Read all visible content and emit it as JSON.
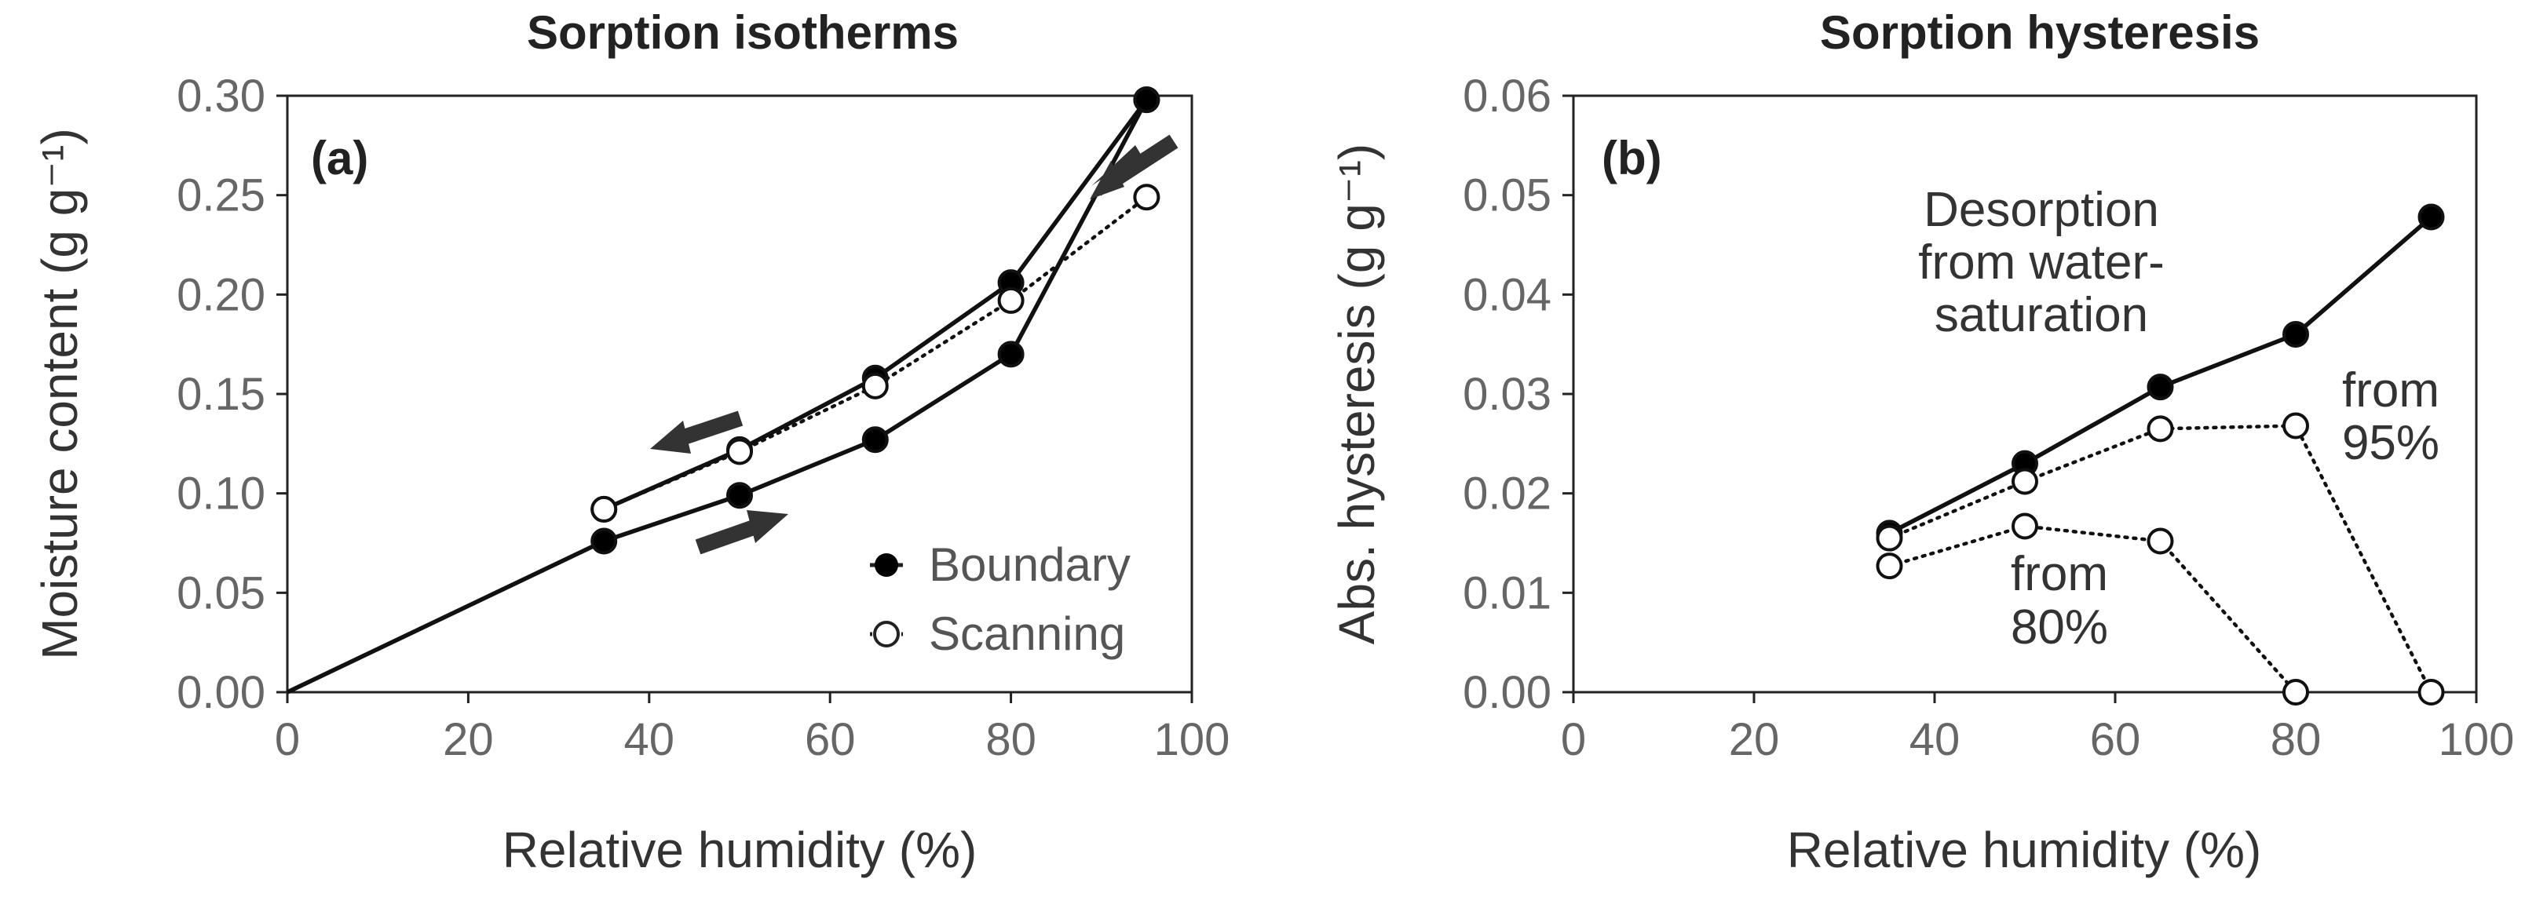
{
  "chart_data": [
    {
      "type": "line",
      "panel_label": "(a)",
      "title": "Sorption isotherms",
      "xlabel": "Relative humidity (%)",
      "ylabel": "Moisture content (g g⁻¹)",
      "xlim": [
        0,
        100
      ],
      "ylim": [
        0,
        0.3
      ],
      "xticks": [
        "0",
        "20",
        "40",
        "60",
        "80",
        "100"
      ],
      "yticks": [
        "0.00",
        "0.05",
        "0.10",
        "0.15",
        "0.20",
        "0.25",
        "0.30"
      ],
      "series": [
        {
          "name": "Boundary",
          "key": "adsorption",
          "style": "solid-filled",
          "x": [
            0,
            35,
            50,
            65,
            80,
            95
          ],
          "y": [
            0,
            0.076,
            0.099,
            0.127,
            0.17,
            0.298
          ]
        },
        {
          "name": "Boundary",
          "key": "desorption",
          "style": "solid-filled",
          "x": [
            35,
            50,
            65,
            80,
            95
          ],
          "y": [
            0.092,
            0.122,
            0.158,
            0.206,
            0.298
          ]
        },
        {
          "name": "Scanning",
          "key": "scanning",
          "style": "dotted-open",
          "x": [
            35,
            50,
            65,
            80,
            95
          ],
          "y": [
            0.092,
            0.121,
            0.154,
            0.197,
            0.249
          ]
        }
      ],
      "legend": {
        "position": "bottom-right",
        "entries": [
          "Boundary",
          "Scanning"
        ]
      }
    },
    {
      "type": "line",
      "panel_label": "(b)",
      "title": "Sorption hysteresis",
      "xlabel": "Relative humidity (%)",
      "ylabel": "Abs. hysteresis (g g⁻¹)",
      "xlim": [
        0,
        100
      ],
      "ylim": [
        0,
        0.06
      ],
      "xticks": [
        "0",
        "20",
        "40",
        "60",
        "80",
        "100"
      ],
      "yticks": [
        "0.00",
        "0.01",
        "0.02",
        "0.03",
        "0.04",
        "0.05",
        "0.06"
      ],
      "series": [
        {
          "name": "Desorption from water-saturation",
          "style": "solid-filled",
          "x": [
            35,
            50,
            65,
            80,
            95
          ],
          "y": [
            0.016,
            0.023,
            0.0307,
            0.036,
            0.0478
          ]
        },
        {
          "name": "from 95%",
          "style": "dotted-open",
          "x": [
            35,
            50,
            65,
            80,
            95
          ],
          "y": [
            0.0155,
            0.0212,
            0.0265,
            0.0268,
            0.0
          ]
        },
        {
          "name": "from 80%",
          "style": "dotted-open",
          "x": [
            35,
            50,
            65,
            80
          ],
          "y": [
            0.0127,
            0.0167,
            0.0152,
            0.0
          ]
        }
      ],
      "annotations": {
        "desorption": [
          "Desorption",
          "from water-",
          "saturation"
        ],
        "from95": [
          "from",
          "95%"
        ],
        "from80": [
          "from",
          "80%"
        ]
      }
    }
  ]
}
